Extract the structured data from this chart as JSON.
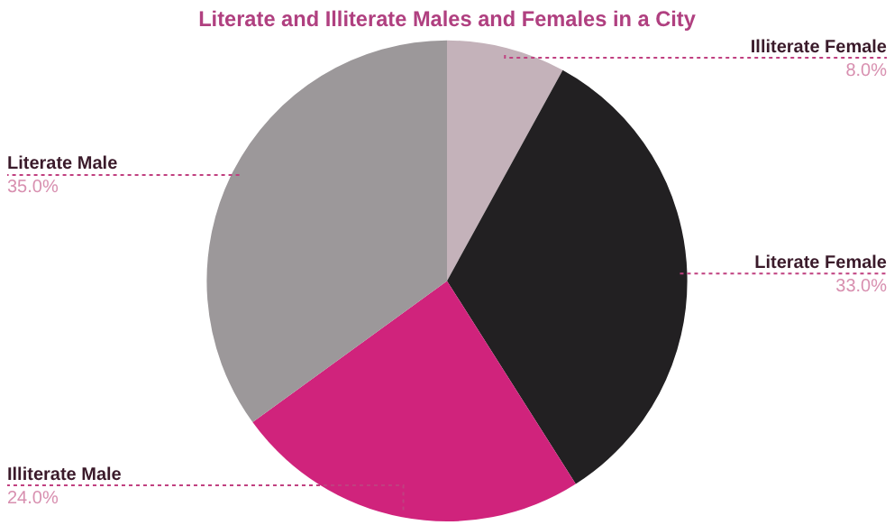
{
  "chart_data": {
    "type": "pie",
    "title": "Literate and Illiterate Males and Females in a City",
    "categories": [
      "Illiterate Female",
      "Literate Female",
      "Illiterate Male",
      "Literate Male"
    ],
    "values": [
      8,
      33,
      24,
      35
    ],
    "value_labels": [
      "8.0%",
      "33.0%",
      "24.0%",
      "35.0%"
    ],
    "colors": [
      "#c4b2ba",
      "#222022",
      "#d0237c",
      "#9c989a"
    ],
    "legend": false
  }
}
